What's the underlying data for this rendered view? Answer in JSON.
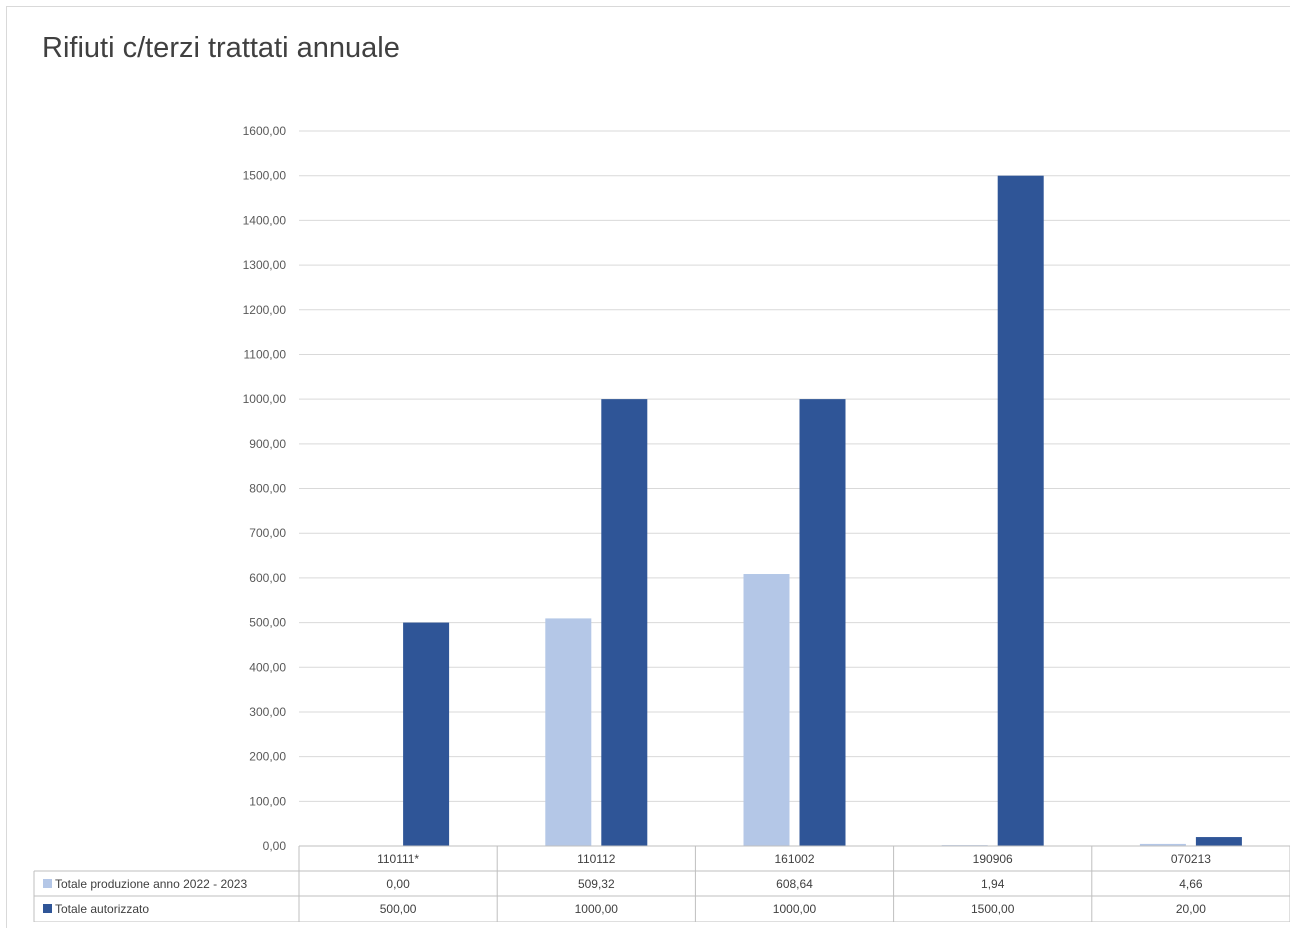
{
  "chart_data": {
    "type": "bar",
    "title": "Rifiuti c/terzi trattati annuale",
    "categories": [
      "110111*",
      "110112",
      "161002",
      "190906",
      "070213"
    ],
    "series": [
      {
        "name": "Totale produzione anno 2022 - 2023",
        "color": "#b4c7e7",
        "values": [
          0.0,
          509.32,
          608.64,
          1.94,
          4.66
        ],
        "labels": [
          "0,00",
          "509,32",
          "608,64",
          "1,94",
          "4,66"
        ]
      },
      {
        "name": "Totale autorizzato",
        "color": "#2f5597",
        "values": [
          500,
          1000,
          1000,
          1500,
          20
        ],
        "labels": [
          "500,00",
          "1000,00",
          "1000,00",
          "1500,00",
          "20,00"
        ]
      }
    ],
    "ylim": [
      0,
      1600
    ],
    "yticks": [
      0,
      100,
      200,
      300,
      400,
      500,
      600,
      700,
      800,
      900,
      1000,
      1100,
      1200,
      1300,
      1400,
      1500,
      1600
    ],
    "ytick_labels": [
      "0,00",
      "100,00",
      "200,00",
      "300,00",
      "400,00",
      "500,00",
      "600,00",
      "700,00",
      "800,00",
      "900,00",
      "1000,00",
      "1100,00",
      "1200,00",
      "1300,00",
      "1400,00",
      "1500,00",
      "1600,00"
    ],
    "grid": true,
    "legend": "data-table-left"
  }
}
